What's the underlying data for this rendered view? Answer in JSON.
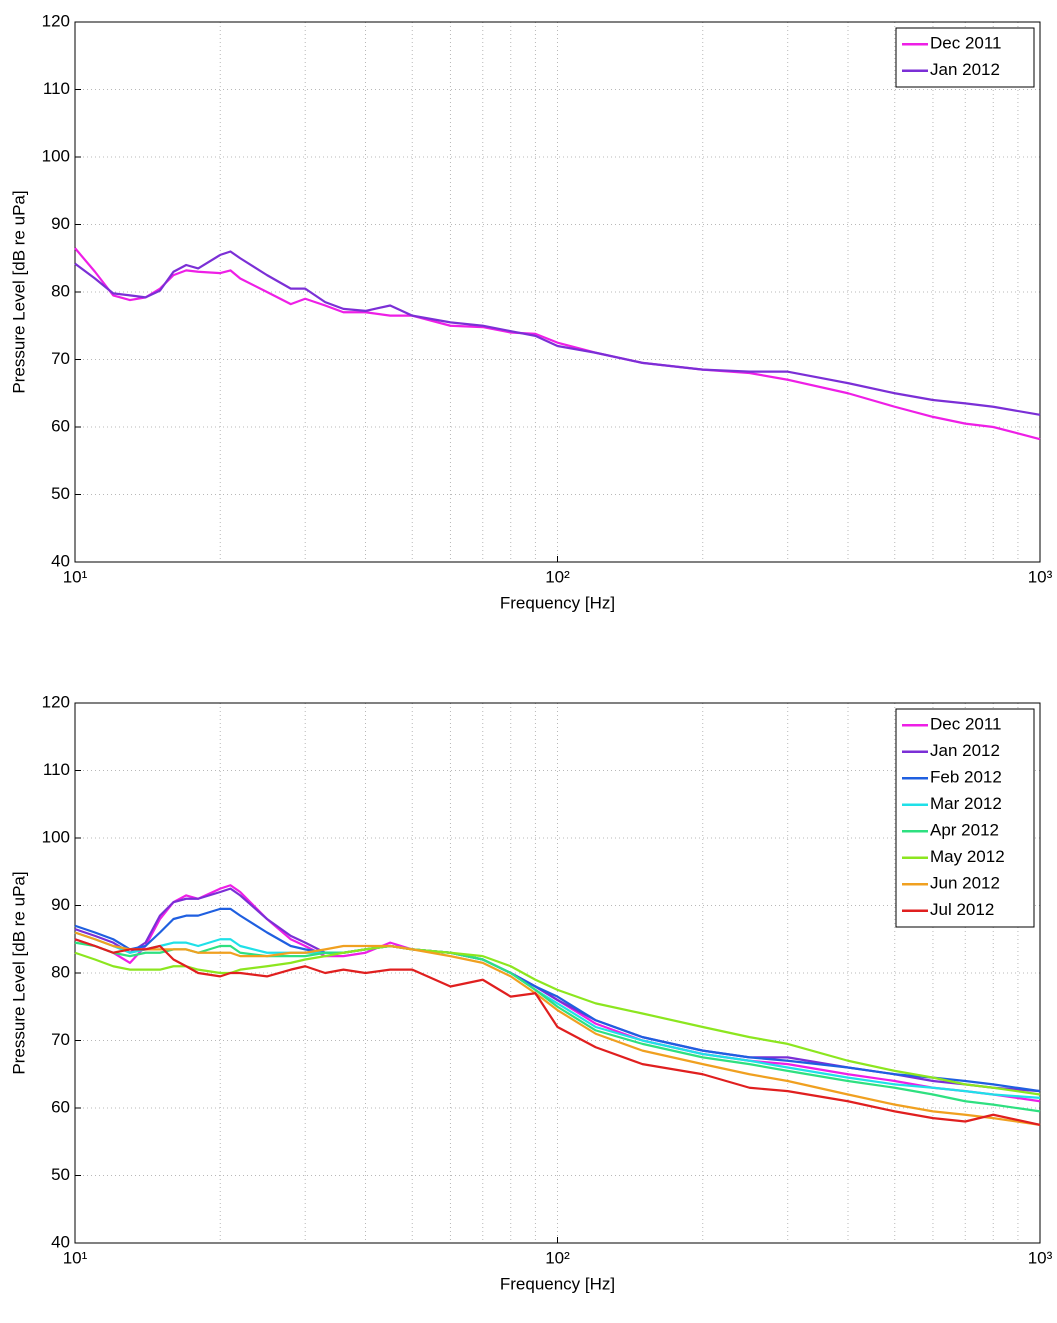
{
  "chart_data": [
    {
      "type": "line",
      "xscale": "log",
      "grid": true,
      "legend": "upper right",
      "xlabel": "Frequency [Hz]",
      "ylabel": "Pressure Level [dB re uPa]",
      "xlim": [
        10,
        1000
      ],
      "ylim": [
        40,
        120
      ],
      "xticks": [
        {
          "value": 10,
          "label": "10¹"
        },
        {
          "value": 100,
          "label": "10²"
        },
        {
          "value": 1000,
          "label": "10³"
        }
      ],
      "xminorticks": [
        20,
        30,
        40,
        50,
        60,
        70,
        80,
        90,
        200,
        300,
        400,
        500,
        600,
        700,
        800,
        900
      ],
      "yticks": [
        40,
        50,
        60,
        70,
        80,
        90,
        100,
        110,
        120
      ],
      "x": [
        10,
        11,
        12,
        13,
        14,
        15,
        16,
        17,
        18,
        20,
        21,
        22,
        25,
        28,
        30,
        33,
        36,
        40,
        45,
        50,
        60,
        70,
        80,
        90,
        100,
        120,
        150,
        200,
        250,
        300,
        400,
        500,
        600,
        700,
        800,
        1000
      ],
      "series": [
        {
          "name": "Dec 2011",
          "color": "#ee1fe6",
          "values": [
            86.5,
            83,
            79.5,
            78.8,
            79.2,
            80.5,
            82.5,
            83.2,
            83,
            82.8,
            83.2,
            82,
            80,
            78.2,
            79,
            78,
            77,
            77,
            76.5,
            76.5,
            75,
            74.8,
            74,
            73.8,
            72.5,
            71,
            69.5,
            68.5,
            68,
            67,
            65,
            63,
            61.5,
            60.5,
            60,
            58.2
          ]
        },
        {
          "name": "Jan 2012",
          "color": "#7b2fd6",
          "values": [
            84.2,
            82,
            79.8,
            79.5,
            79.2,
            80.2,
            83,
            84,
            83.5,
            85.5,
            86,
            85,
            82.5,
            80.5,
            80.5,
            78.5,
            77.5,
            77.2,
            78,
            76.5,
            75.5,
            75,
            74.2,
            73.5,
            72,
            71,
            69.5,
            68.5,
            68.2,
            68.2,
            66.5,
            65,
            64,
            63.5,
            63,
            61.8
          ]
        }
      ]
    },
    {
      "type": "line",
      "xscale": "log",
      "grid": true,
      "legend": "upper right",
      "xlabel": "Frequency [Hz]",
      "ylabel": "Pressure Level [dB re uPa]",
      "xlim": [
        10,
        1000
      ],
      "ylim": [
        40,
        120
      ],
      "xticks": [
        {
          "value": 10,
          "label": "10¹"
        },
        {
          "value": 100,
          "label": "10²"
        },
        {
          "value": 1000,
          "label": "10³"
        }
      ],
      "xminorticks": [
        20,
        30,
        40,
        50,
        60,
        70,
        80,
        90,
        200,
        300,
        400,
        500,
        600,
        700,
        800,
        900
      ],
      "yticks": [
        40,
        50,
        60,
        70,
        80,
        90,
        100,
        110,
        120
      ],
      "x": [
        10,
        11,
        12,
        13,
        14,
        15,
        16,
        17,
        18,
        20,
        21,
        22,
        25,
        28,
        30,
        33,
        36,
        40,
        45,
        50,
        60,
        70,
        80,
        90,
        100,
        120,
        150,
        200,
        250,
        300,
        400,
        500,
        600,
        700,
        800,
        1000
      ],
      "series": [
        {
          "name": "Dec 2011",
          "color": "#ee1fe6",
          "values": [
            85,
            84,
            83,
            81.5,
            84,
            88,
            90.5,
            91.5,
            91,
            92.5,
            93,
            92,
            88,
            85,
            84,
            82.5,
            82.5,
            83,
            84.5,
            83.5,
            83,
            82,
            80,
            78,
            76,
            72.5,
            70,
            68,
            67,
            66.5,
            65,
            64,
            63,
            62.5,
            62,
            61
          ]
        },
        {
          "name": "Jan 2012",
          "color": "#7b2fd6",
          "values": [
            86.5,
            85.5,
            84.5,
            83,
            84.5,
            88.5,
            90.5,
            91,
            91,
            92,
            92.5,
            91.5,
            88,
            85.5,
            84.5,
            83,
            83,
            83.5,
            84,
            83.5,
            83,
            82,
            80,
            78,
            76,
            73,
            70.5,
            68.5,
            67.5,
            67.5,
            66,
            65,
            64,
            63.5,
            63,
            62.5
          ]
        },
        {
          "name": "Feb 2012",
          "color": "#1f5fe0",
          "values": [
            87,
            86,
            85,
            83.5,
            84,
            86,
            88,
            88.5,
            88.5,
            89.5,
            89.5,
            88.5,
            86,
            84,
            83.5,
            83,
            83,
            83.5,
            84,
            83.5,
            83,
            82,
            80,
            78,
            76.5,
            73,
            70.5,
            68.5,
            67.5,
            67,
            66,
            65,
            64.5,
            64,
            63.5,
            62.5
          ]
        },
        {
          "name": "Mar 2012",
          "color": "#1fe0e8",
          "values": [
            86,
            85,
            84,
            83,
            83.5,
            84,
            84.5,
            84.5,
            84,
            85,
            85,
            84,
            83,
            83,
            83,
            83,
            83,
            83.5,
            84,
            83.5,
            83,
            82,
            80,
            77.5,
            75.5,
            72,
            70,
            68,
            67,
            66,
            64.5,
            63.5,
            63,
            62.5,
            62,
            61.5
          ]
        },
        {
          "name": "Apr 2012",
          "color": "#2ee080",
          "values": [
            84.5,
            84,
            83,
            82.5,
            83,
            83,
            83.5,
            83.5,
            83,
            84,
            84,
            83,
            82.5,
            82.5,
            82.5,
            83,
            83,
            83.5,
            84,
            83.5,
            83,
            82,
            80,
            77.5,
            75,
            71.5,
            69.5,
            67.5,
            66.5,
            65.5,
            64,
            63,
            62,
            61,
            60.5,
            59.5
          ]
        },
        {
          "name": "May 2012",
          "color": "#8ce61f",
          "values": [
            83,
            82,
            81,
            80.5,
            80.5,
            80.5,
            81,
            81,
            80.5,
            80,
            80,
            80.5,
            81,
            81.5,
            82,
            82.5,
            83,
            83.5,
            84,
            83.5,
            83,
            82.5,
            81,
            79,
            77.5,
            75.5,
            74,
            72,
            70.5,
            69.5,
            67,
            65.5,
            64.5,
            63.5,
            63,
            62
          ]
        },
        {
          "name": "Jun 2012",
          "color": "#f0a020",
          "values": [
            86,
            85,
            84,
            83.5,
            83.5,
            83.5,
            83.5,
            83.5,
            83,
            83,
            83,
            82.5,
            82.5,
            83,
            83,
            83.5,
            84,
            84,
            84,
            83.5,
            82.5,
            81.5,
            79.5,
            77,
            74.5,
            71,
            68.5,
            66.5,
            65,
            64,
            62,
            60.5,
            59.5,
            59,
            58.5,
            57.5
          ]
        },
        {
          "name": "Jul 2012",
          "color": "#e01f1f",
          "values": [
            85,
            84,
            83,
            83.5,
            83.5,
            84,
            82,
            81,
            80,
            79.5,
            80,
            80,
            79.5,
            80.5,
            81,
            80,
            80.5,
            80,
            80.5,
            80.5,
            78,
            79,
            76.5,
            77,
            72,
            69,
            66.5,
            65,
            63,
            62.5,
            61,
            59.5,
            58.5,
            58,
            59,
            57.5
          ]
        }
      ]
    }
  ]
}
